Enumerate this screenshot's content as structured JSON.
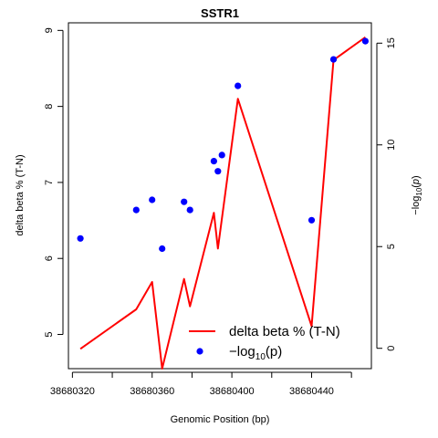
{
  "chart_data": {
    "type": "line",
    "title": "SSTR1",
    "xlabel": "Genomic Position (bp)",
    "ylabel_left": "delta beta % (T-N)",
    "ylabel_right": "−log10(p)",
    "xlim": [
      38680318,
      38680470
    ],
    "ylim_left": [
      4.55,
      9.1
    ],
    "ylim_right": [
      -1.0,
      16.0
    ],
    "x_ticks": [
      38680320,
      38680340,
      38680360,
      38680380,
      38680400,
      38680420,
      38680440,
      38680460
    ],
    "x_tick_labels": [
      "38680320",
      "",
      "38680360",
      "",
      "38680400",
      "",
      "38680440",
      ""
    ],
    "y_left_ticks": [
      5,
      6,
      7,
      8,
      9
    ],
    "y_left_tick_labels": [
      "5",
      "6",
      "7",
      "8",
      "9"
    ],
    "y_right_ticks": [
      0,
      5,
      10,
      15
    ],
    "y_right_tick_labels": [
      "0",
      "5",
      "10",
      "15"
    ],
    "grid": false,
    "legend_position": "bottom-right",
    "series": [
      {
        "name": "delta beta % (T-N)",
        "axis": "left",
        "type": "line",
        "color": "#ff0000",
        "x": [
          38680324,
          38680352,
          38680360,
          38680365,
          38680376,
          38680379,
          38680391,
          38680393,
          38680403,
          38680440,
          38680451,
          38680467
        ],
        "y": [
          4.81,
          5.33,
          5.69,
          4.55,
          5.73,
          5.37,
          6.6,
          6.13,
          8.1,
          5.11,
          8.61,
          8.91
        ]
      },
      {
        "name": "−log10(p)",
        "axis": "right",
        "type": "scatter",
        "color": "#0000ff",
        "x": [
          38680324,
          38680352,
          38680360,
          38680365,
          38680376,
          38680379,
          38680391,
          38680393,
          38680395,
          38680403,
          38680440,
          38680451,
          38680467
        ],
        "y": [
          5.4,
          6.8,
          7.3,
          4.9,
          7.2,
          6.8,
          9.2,
          8.7,
          9.5,
          12.9,
          6.3,
          14.2,
          15.1
        ]
      }
    ],
    "legend": {
      "line_label": "delta beta % (T-N)",
      "points_label_prefix": "−log",
      "points_label_sub": "10",
      "points_label_suffix": "(p)"
    }
  }
}
